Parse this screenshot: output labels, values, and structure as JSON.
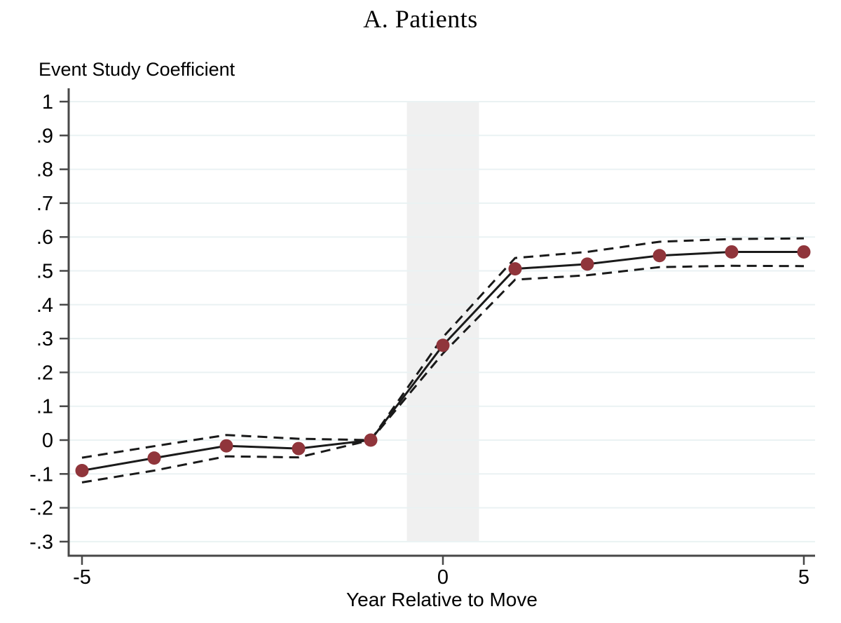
{
  "figure": {
    "title": "A. Patients",
    "background_color": "#ffffff"
  },
  "chart_data": {
    "type": "line",
    "title": "A. Patients",
    "xlabel": "Year Relative to Move",
    "ylabel": "Event Study Coefficient",
    "x": [
      -5,
      -4,
      -3,
      -2,
      -1,
      0,
      1,
      2,
      3,
      4,
      5
    ],
    "series": [
      {
        "name": "event-study-coefficient",
        "style": "solid",
        "markers": true,
        "values": [
          -0.09,
          -0.053,
          -0.017,
          -0.025,
          0,
          0.28,
          0.506,
          0.52,
          0.545,
          0.556,
          0.556
        ]
      },
      {
        "name": "ci-upper-bound",
        "style": "dashed",
        "markers": false,
        "values": [
          -0.052,
          -0.018,
          0.015,
          0.004,
          0,
          0.304,
          0.538,
          0.556,
          0.586,
          0.594,
          0.596
        ]
      },
      {
        "name": "ci-lower-bound",
        "style": "dashed",
        "markers": false,
        "values": [
          -0.125,
          -0.09,
          -0.048,
          -0.051,
          0,
          0.256,
          0.474,
          0.487,
          0.511,
          0.515,
          0.514
        ]
      }
    ],
    "xlim": [
      -5.2,
      5.35
    ],
    "ylim": [
      -0.3,
      1
    ],
    "grid": true,
    "legend": "none",
    "y_ticks": [
      {
        "value": 1.0,
        "label": "1"
      },
      {
        "value": 0.9,
        "label": ".9"
      },
      {
        "value": 0.8,
        "label": ".8"
      },
      {
        "value": 0.7,
        "label": ".7"
      },
      {
        "value": 0.6,
        "label": ".6"
      },
      {
        "value": 0.5,
        "label": ".5"
      },
      {
        "value": 0.4,
        "label": ".4"
      },
      {
        "value": 0.3,
        "label": ".3"
      },
      {
        "value": 0.2,
        "label": ".2"
      },
      {
        "value": 0.1,
        "label": ".1"
      },
      {
        "value": 0.0,
        "label": "0"
      },
      {
        "value": -0.1,
        "label": "-.1"
      },
      {
        "value": -0.2,
        "label": "-.2"
      },
      {
        "value": -0.3,
        "label": "-.3"
      }
    ],
    "x_ticks": [
      {
        "value": -5,
        "label": "-5"
      },
      {
        "value": 0,
        "label": "0"
      },
      {
        "value": 5,
        "label": "5"
      }
    ],
    "shaded_band": {
      "x_start": -0.5,
      "x_end": 0.5,
      "color": "#f0f0f0"
    },
    "colors": {
      "line": "#1a1a1a",
      "marker": "#90353b",
      "gridline": "#eaf2f3",
      "axis": "#474747",
      "text": "#000000"
    }
  }
}
